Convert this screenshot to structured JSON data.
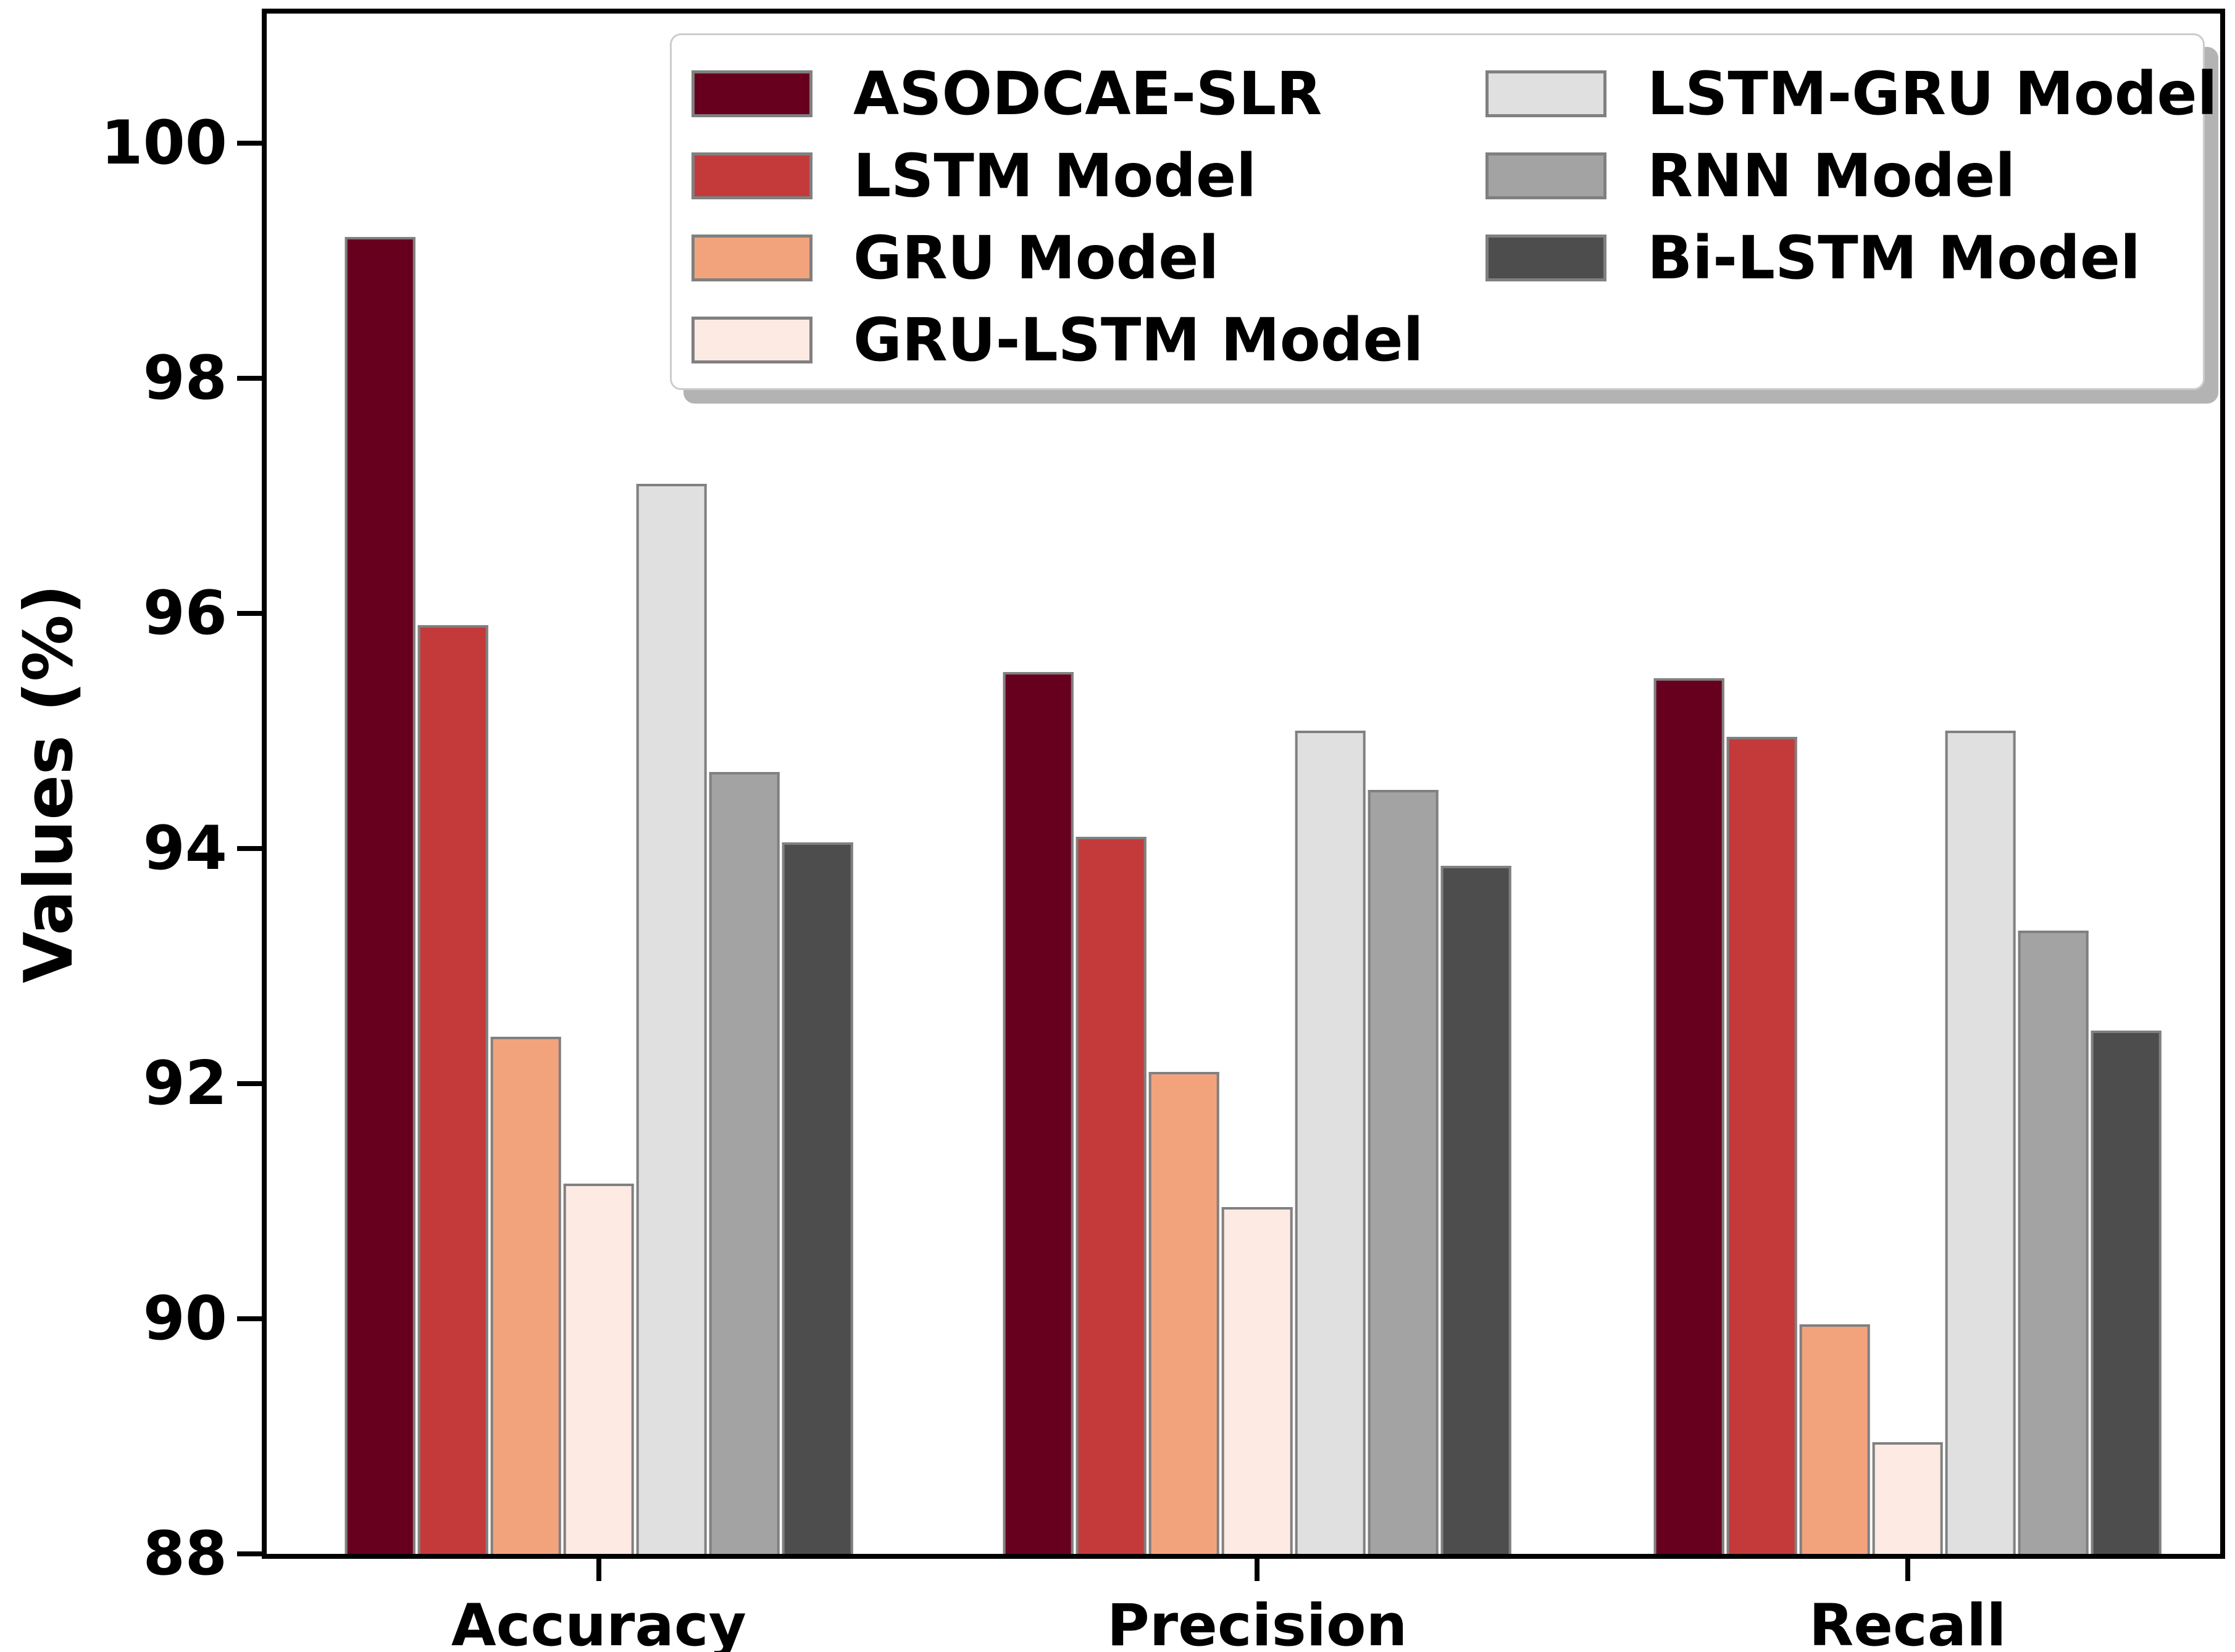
{
  "figure": {
    "background_color": "#ffffff",
    "text_color": "#000000"
  },
  "axis": {
    "ylabel": "Values (%)",
    "spine_color": "#000000",
    "bar_edge_color": "#808080"
  },
  "legend": {
    "border_color": "#cccccc",
    "shadow_color": "#b3b3b3",
    "columns": [
      [
        "ASODCAE-SLR",
        "LSTM Model",
        "GRU Model",
        "GRU-LSTM Model"
      ],
      [
        "LSTM-GRU Model",
        "RNN Model",
        "Bi-LSTM Model"
      ]
    ]
  },
  "chart_data": {
    "type": "bar",
    "title": "",
    "xlabel": "",
    "ylabel": "Values (%)",
    "ylim": [
      88,
      101.1
    ],
    "yticks": [
      88,
      90,
      92,
      94,
      96,
      98,
      100
    ],
    "grid": false,
    "legend_position": "upper center, two columns",
    "categories": [
      "Accuracy",
      "Precision",
      "Recall"
    ],
    "category_centers_pct": [
      17.0,
      50.7,
      84.0
    ],
    "series": [
      {
        "name": "ASODCAE-SLR",
        "color": "#67001f",
        "values": [
          99.2,
          95.5,
          95.45
        ]
      },
      {
        "name": "LSTM Model",
        "color": "#c43a3a",
        "values": [
          95.9,
          94.1,
          94.95
        ]
      },
      {
        "name": "GRU Model",
        "color": "#f2a37c",
        "values": [
          92.4,
          92.1,
          89.95
        ]
      },
      {
        "name": "GRU-LSTM Model",
        "color": "#fdeae2",
        "values": [
          91.15,
          90.95,
          88.95
        ]
      },
      {
        "name": "LSTM-GRU Model",
        "color": "#e0e0e0",
        "values": [
          97.1,
          95.0,
          95.0
        ]
      },
      {
        "name": "RNN Model",
        "color": "#a3a3a3",
        "values": [
          94.65,
          94.5,
          93.3
        ]
      },
      {
        "name": "Bi-LSTM Model",
        "color": "#4d4d4d",
        "values": [
          94.05,
          93.85,
          92.45
        ]
      }
    ]
  }
}
